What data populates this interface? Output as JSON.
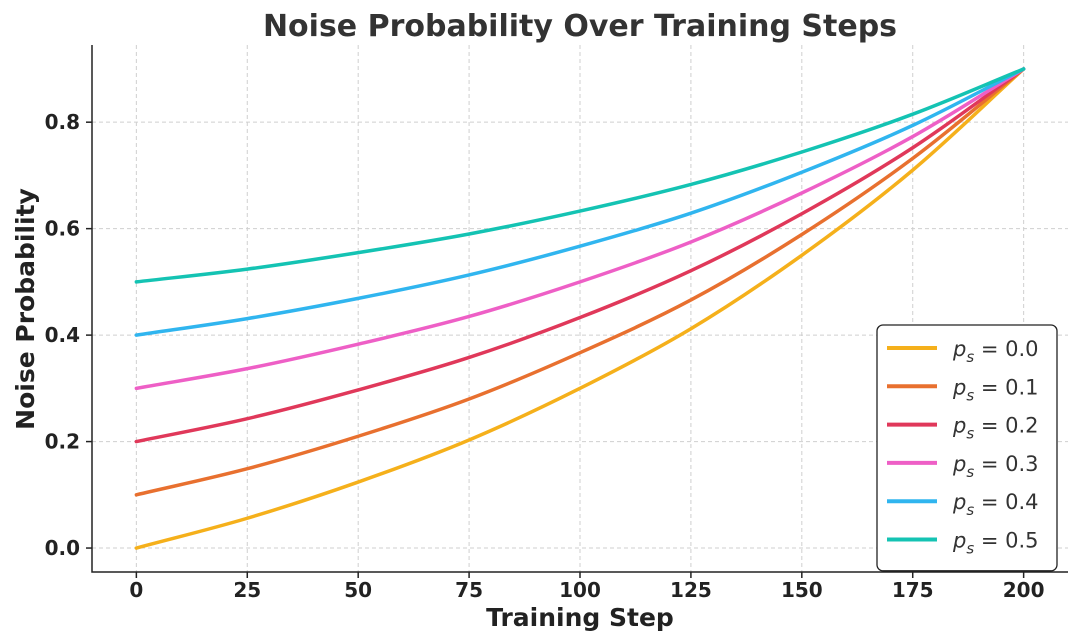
{
  "chart_data": {
    "type": "line",
    "title": "Noise Probability Over Training Steps",
    "xlabel": "Training Step",
    "ylabel": "Noise Probability",
    "xlim": [
      -10,
      210
    ],
    "ylim": [
      -0.045,
      0.945
    ],
    "xticks": [
      "0",
      "25",
      "50",
      "75",
      "100",
      "125",
      "150",
      "175",
      "200"
    ],
    "yticks": [
      "0.0",
      "0.2",
      "0.4",
      "0.6",
      "0.8"
    ],
    "grid": true,
    "legend_position": "lower-right",
    "x": [
      0,
      25,
      50,
      75,
      100,
      125,
      150,
      175,
      200
    ],
    "series": [
      {
        "name": "p_s = 0.0",
        "legend_prefix": "p",
        "legend_sub": "s",
        "legend_value": " = 0.0",
        "color": "#f5b01b",
        "values": [
          0.0,
          0.056,
          0.124,
          0.203,
          0.3,
          0.412,
          0.55,
          0.71,
          0.9
        ]
      },
      {
        "name": "p_s = 0.1",
        "legend_prefix": "p",
        "legend_sub": "s",
        "legend_value": " = 0.1",
        "color": "#e8702f",
        "values": [
          0.1,
          0.149,
          0.21,
          0.28,
          0.367,
          0.466,
          0.589,
          0.732,
          0.9
        ]
      },
      {
        "name": "p_s = 0.2",
        "legend_prefix": "p",
        "legend_sub": "s",
        "legend_value": " = 0.2",
        "color": "#e0385a",
        "values": [
          0.2,
          0.243,
          0.297,
          0.358,
          0.433,
          0.521,
          0.628,
          0.752,
          0.9
        ]
      },
      {
        "name": "p_s = 0.3",
        "legend_prefix": "p",
        "legend_sub": "s",
        "legend_value": " = 0.3",
        "color": "#ee5fc6",
        "values": [
          0.3,
          0.337,
          0.383,
          0.435,
          0.5,
          0.575,
          0.667,
          0.773,
          0.9
        ]
      },
      {
        "name": "p_s = 0.4",
        "legend_prefix": "p",
        "legend_sub": "s",
        "legend_value": " = 0.4",
        "color": "#30b5ef",
        "values": [
          0.4,
          0.431,
          0.469,
          0.513,
          0.567,
          0.629,
          0.706,
          0.794,
          0.9
        ]
      },
      {
        "name": "p_s = 0.5",
        "legend_prefix": "p",
        "legend_sub": "s",
        "legend_value": " = 0.5",
        "color": "#14c3b3",
        "values": [
          0.5,
          0.524,
          0.555,
          0.59,
          0.633,
          0.683,
          0.744,
          0.815,
          0.9
        ]
      }
    ]
  }
}
